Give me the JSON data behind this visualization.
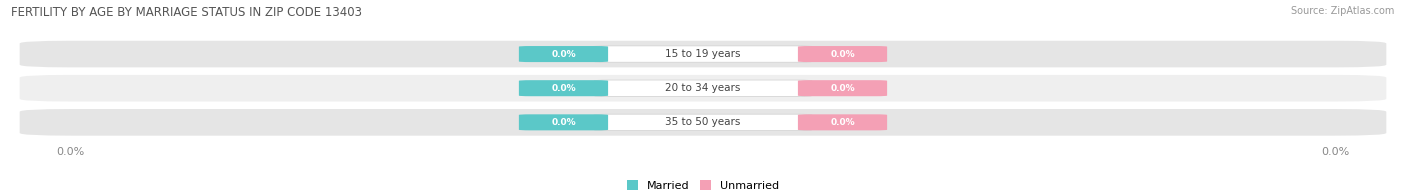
{
  "title": "FERTILITY BY AGE BY MARRIAGE STATUS IN ZIP CODE 13403",
  "source": "Source: ZipAtlas.com",
  "categories": [
    "15 to 19 years",
    "20 to 34 years",
    "35 to 50 years"
  ],
  "married_values": [
    0.0,
    0.0,
    0.0
  ],
  "unmarried_values": [
    0.0,
    0.0,
    0.0
  ],
  "married_color": "#5bc8c8",
  "unmarried_color": "#f4a0b5",
  "row_bg_light": "#efefef",
  "row_bg_dark": "#e5e5e5",
  "xlim": [
    -1.0,
    1.0
  ],
  "figsize": [
    14.06,
    1.96
  ],
  "dpi": 100,
  "axis_label_left": "0.0%",
  "axis_label_right": "0.0%",
  "legend_married": "Married",
  "legend_unmarried": "Unmarried",
  "background_color": "#ffffff"
}
